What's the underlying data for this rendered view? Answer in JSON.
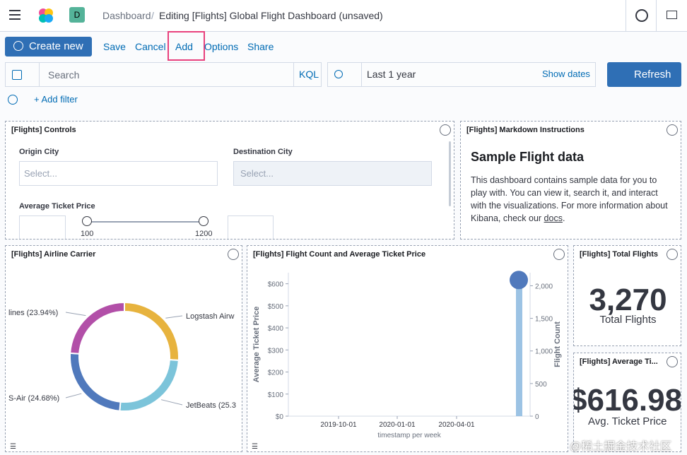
{
  "header": {
    "breadcrumbs": [
      "Dashboard",
      "Editing [Flights] Global Flight Dashboard (unsaved)"
    ],
    "space": "D"
  },
  "toolbar": {
    "create": "Create new",
    "links": [
      "Save",
      "Cancel",
      "Add",
      "Options",
      "Share"
    ]
  },
  "query": {
    "placeholder": "Search",
    "language": "KQL",
    "time": "Last 1 year",
    "show_dates": "Show dates",
    "refresh": "Refresh",
    "add_filter": "+ Add filter"
  },
  "panels": {
    "controls": {
      "title": "[Flights] Controls",
      "origin": "Origin City",
      "destination": "Destination City",
      "select": "Select...",
      "price": "Average Ticket Price",
      "min": 100,
      "max": 1200
    },
    "markdown": {
      "title": "[Flights] Markdown Instructions",
      "heading": "Sample Flight data",
      "body": "This dashboard contains sample data for you to play with. You can view it, search it, and interact with the visualizations. For more information about Kibana, check our",
      "link": "docs",
      "end": "."
    },
    "airline": {
      "title": "[Flights] Airline Carrier",
      "labels": [
        "Logstash Airw",
        "JetBeats (25.3",
        "S-Air (24.68%)",
        "lines (23.94%)"
      ],
      "values": [
        26.03,
        25.35,
        24.68,
        23.94
      ],
      "colors": [
        "#e7b33e",
        "#7cc4da",
        "#5079bc",
        "#b24fa8"
      ]
    },
    "flights": {
      "title": "[Flights] Flight Count and Average Ticket Price",
      "ylabel": "Average Ticket Price",
      "y2label": "Flight Count",
      "xlabel": "timestamp per week",
      "ylim": [
        0,
        650
      ],
      "yticks": [
        {
          "value": 0,
          "label": "$0"
        },
        {
          "value": 100,
          "label": "$100"
        },
        {
          "value": 200,
          "label": "$200"
        },
        {
          "value": 300,
          "label": "$300"
        },
        {
          "value": 400,
          "label": "$400"
        },
        {
          "value": 500,
          "label": "$500"
        },
        {
          "value": 600,
          "label": "$600"
        }
      ],
      "y2lim": [
        0,
        2200
      ],
      "y2ticks": [
        0,
        500,
        {
          "value": 1000,
          "label": "1,000"
        },
        {
          "value": 1500,
          "label": "1,500"
        },
        {
          "value": 2000,
          "label": "2,000"
        }
      ],
      "xticks": [
        "2019-10-01",
        "2020-01-01",
        "2020-04-01"
      ],
      "count_values": [
        2050
      ],
      "price_values": [
        616.98
      ]
    },
    "total": {
      "title": "[Flights] Total Flights",
      "value": "3,270",
      "label": "Total Flights"
    },
    "average": {
      "title": "[Flights] Average Ti...",
      "value": "$616.98",
      "label": "Avg. Ticket Price"
    }
  },
  "watermark": "@稀土掘金技术社区"
}
